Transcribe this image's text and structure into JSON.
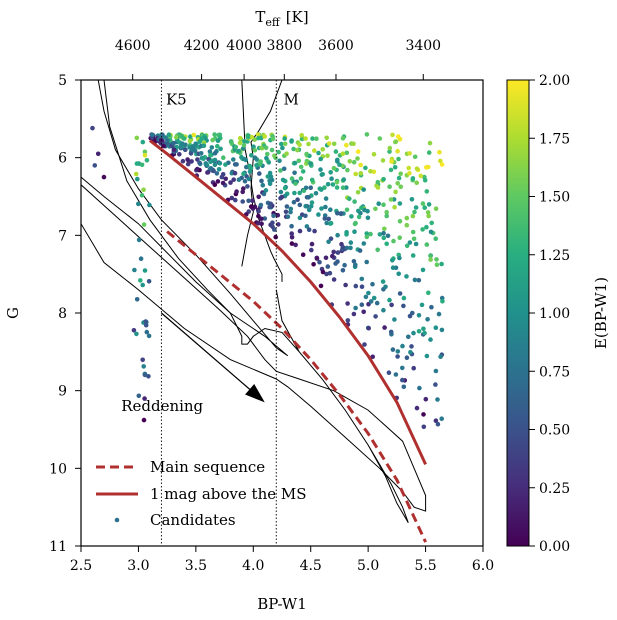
{
  "chart_data": {
    "type": "scatter",
    "xlabel": "BP-W1",
    "ylabel": "G",
    "top_axis_label_main": "T",
    "top_axis_label_sub": "eff",
    "top_axis_label_unit": "[K]",
    "colorbar_label": "E(BP-W1)",
    "xlim": [
      2.5,
      6.0
    ],
    "ylim": [
      11,
      5
    ],
    "y_inverted": true,
    "x_ticks": [
      "2.5",
      "3.0",
      "3.5",
      "4.0",
      "4.5",
      "5.0",
      "5.5",
      "6.0"
    ],
    "x_tick_values": [
      2.5,
      3.0,
      3.5,
      4.0,
      4.5,
      5.0,
      5.5,
      6.0
    ],
    "y_ticks": [
      "5",
      "6",
      "7",
      "8",
      "9",
      "10",
      "11"
    ],
    "y_tick_values": [
      5,
      6,
      7,
      8,
      9,
      10,
      11
    ],
    "top_ticks": [
      {
        "label": "4600",
        "x": 2.95
      },
      {
        "label": "4200",
        "x": 3.55
      },
      {
        "label": "4000",
        "x": 3.92
      },
      {
        "label": "3800",
        "x": 4.27
      },
      {
        "label": "3600",
        "x": 4.72
      },
      {
        "label": "3400",
        "x": 5.48
      }
    ],
    "colorbar_ticks": [
      "0.00",
      "0.25",
      "0.50",
      "0.75",
      "1.00",
      "1.25",
      "1.50",
      "1.75",
      "2.00"
    ],
    "colorbar_tick_values": [
      0,
      0.25,
      0.5,
      0.75,
      1.0,
      1.25,
      1.5,
      1.75,
      2.0
    ],
    "colorbar_range": [
      0,
      2.0
    ],
    "colormap": "viridis",
    "vertical_lines": [
      {
        "x": 3.2,
        "label": "K5",
        "label_x": 3.33,
        "label_y": 5.25
      },
      {
        "x": 4.2,
        "label": "M",
        "label_x": 4.33,
        "label_y": 5.25
      }
    ],
    "reddening": {
      "label": "Reddening",
      "from": [
        3.2,
        8.0
      ],
      "to": [
        4.1,
        9.15
      ],
      "label_x": 2.85,
      "label_y": 9.2
    },
    "main_sequence": {
      "name": "Main sequence",
      "color": "#b03030",
      "x": [
        3.25,
        3.5,
        3.75,
        4.0,
        4.25,
        4.5,
        4.75,
        5.0,
        5.25,
        5.5
      ],
      "y": [
        6.95,
        7.25,
        7.55,
        7.85,
        8.2,
        8.6,
        9.05,
        9.55,
        10.15,
        10.95
      ]
    },
    "ms_plus_one": {
      "name": "1 mag above the MS",
      "color": "#b03030",
      "x": [
        3.1,
        3.25,
        3.5,
        3.75,
        4.0,
        4.25,
        4.5,
        4.75,
        5.0,
        5.25,
        5.5
      ],
      "y": [
        5.78,
        5.95,
        6.25,
        6.55,
        6.85,
        7.2,
        7.6,
        8.05,
        8.55,
        9.15,
        9.95
      ]
    },
    "isochrones": [
      {
        "x": [
          2.65,
          2.7,
          2.8,
          3.0,
          3.2,
          3.5,
          3.8,
          4.0,
          4.2,
          4.3,
          4.3,
          4.1,
          3.8,
          3.5,
          3.2,
          3.0,
          2.7,
          2.5
        ],
        "y": [
          5.0,
          5.4,
          5.9,
          6.4,
          6.8,
          7.25,
          7.75,
          8.1,
          8.45,
          8.55,
          8.55,
          8.3,
          8.0,
          7.6,
          7.15,
          6.85,
          6.5,
          6.25
        ]
      },
      {
        "x": [
          2.5,
          2.8,
          3.1,
          3.4,
          3.7,
          3.95,
          4.1,
          4.2,
          4.4,
          4.7,
          5.0,
          5.3,
          5.4,
          5.5,
          5.5,
          5.4,
          5.3,
          5.1,
          4.8,
          4.5,
          4.3,
          4.2,
          3.8,
          3.4,
          3.0,
          2.7,
          2.5
        ],
        "y": [
          6.35,
          6.75,
          7.15,
          7.55,
          7.95,
          8.3,
          8.6,
          8.75,
          8.85,
          9.0,
          9.25,
          9.65,
          10.0,
          10.35,
          10.55,
          10.5,
          10.3,
          10.0,
          9.6,
          9.2,
          8.95,
          8.85,
          8.6,
          8.2,
          7.7,
          7.35,
          6.85
        ]
      },
      {
        "x": [
          2.7,
          2.75,
          2.9,
          3.1,
          3.35,
          3.6,
          3.8,
          3.85,
          3.9,
          3.9,
          3.95,
          4.0,
          4.1,
          4.25,
          4.4,
          4.6,
          4.8,
          5.0,
          5.15,
          5.25,
          5.35,
          5.3,
          5.2,
          5.0,
          4.8,
          4.6,
          4.4,
          4.25,
          4.2
        ],
        "y": [
          5.0,
          5.6,
          6.3,
          6.8,
          7.3,
          7.7,
          8.0,
          8.15,
          8.3,
          8.4,
          8.4,
          8.3,
          8.2,
          8.25,
          8.5,
          8.85,
          9.25,
          9.7,
          10.1,
          10.45,
          10.7,
          10.5,
          10.2,
          9.7,
          9.25,
          8.85,
          8.5,
          8.1,
          7.7
        ]
      },
      {
        "x": [
          3.9,
          3.93,
          3.97,
          4.0,
          4.05,
          4.1,
          4.15,
          4.18,
          4.25,
          4.25
        ],
        "y": [
          5.0,
          5.9,
          6.2,
          6.5,
          6.8,
          7.0,
          7.2,
          7.3,
          7.5,
          7.6
        ]
      },
      {
        "x": [
          4.25,
          4.15,
          4.05,
          3.98,
          4.0,
          3.98,
          4.0,
          3.95,
          3.9
        ],
        "y": [
          5.0,
          5.4,
          5.65,
          5.8,
          6.0,
          6.4,
          6.7,
          7.0,
          7.4
        ]
      }
    ],
    "candidates_label": "Candidates",
    "candidates_seed": 17,
    "candidates_count": 780,
    "legend_position": "lower-left"
  }
}
